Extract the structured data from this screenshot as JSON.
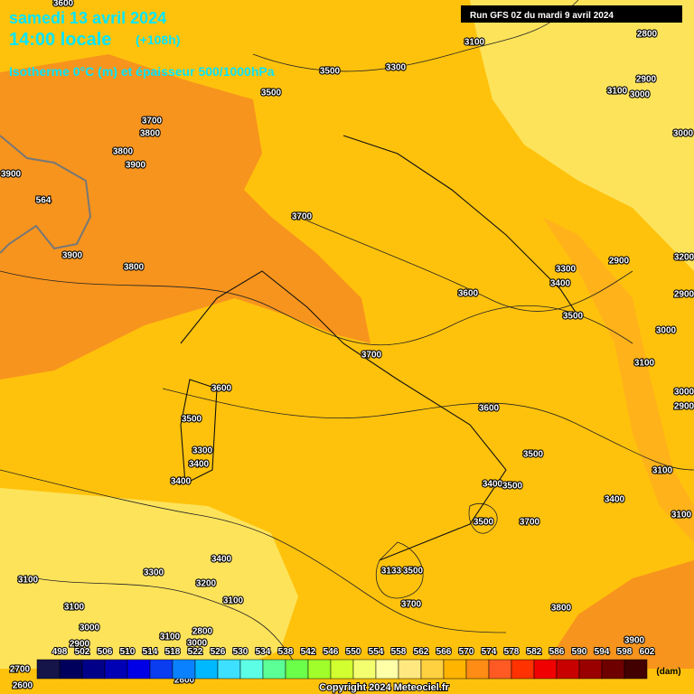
{
  "header": {
    "date": "samedi 13 avril 2024",
    "time": "14:00 locale",
    "lead": "(+108h)",
    "product": "Isotherme 0°C (m) et épaisseur 500/1000hPa",
    "run": "Run GFS 0Z du mardi 9 avril 2024"
  },
  "contour_labels": [
    "3600",
    "3100",
    "3500",
    "3300",
    "3500",
    "2800",
    "2900",
    "3100",
    "3000",
    "3700",
    "3800",
    "3800",
    "3900",
    "3900",
    "564",
    "3000",
    "3700",
    "3900",
    "3800",
    "3200",
    "2900",
    "3300",
    "3400",
    "3600",
    "2900",
    "3500",
    "3000",
    "3700",
    "3100",
    "3600",
    "3000",
    "2900",
    "3600",
    "3500",
    "3300",
    "3400",
    "3500",
    "3100",
    "3400",
    "3400",
    "3500",
    "3400",
    "3100",
    "3700",
    "3500",
    "3400",
    "3300",
    "3100",
    "3133",
    "3500",
    "3200",
    "3100",
    "3100",
    "3700",
    "3800",
    "3000",
    "2900",
    "3100",
    "2800",
    "3000",
    "3900",
    "2700",
    "2600",
    "2600"
  ],
  "legend": {
    "values": [
      498,
      502,
      506,
      510,
      514,
      518,
      522,
      526,
      530,
      534,
      538,
      542,
      546,
      550,
      554,
      558,
      562,
      566,
      570,
      574,
      578,
      582,
      586,
      590,
      594,
      598,
      602
    ],
    "colors": [
      "#15154a",
      "#00005c",
      "#000088",
      "#0000b4",
      "#0000e6",
      "#0a3cf0",
      "#0a82ff",
      "#00b8ff",
      "#3ee0ff",
      "#5cffe6",
      "#5cff96",
      "#6cff4a",
      "#a0ff2a",
      "#d2ff30",
      "#f4ff70",
      "#ffffa8",
      "#ffe880",
      "#ffd040",
      "#ffb400",
      "#ff8c14",
      "#ff5a24",
      "#ff3200",
      "#f00000",
      "#c80000",
      "#9a0000",
      "#6e0000",
      "#420000"
    ],
    "unit": "(dam)"
  },
  "footer": {
    "copyright": "Copyright 2024 Meteociel.fr"
  }
}
